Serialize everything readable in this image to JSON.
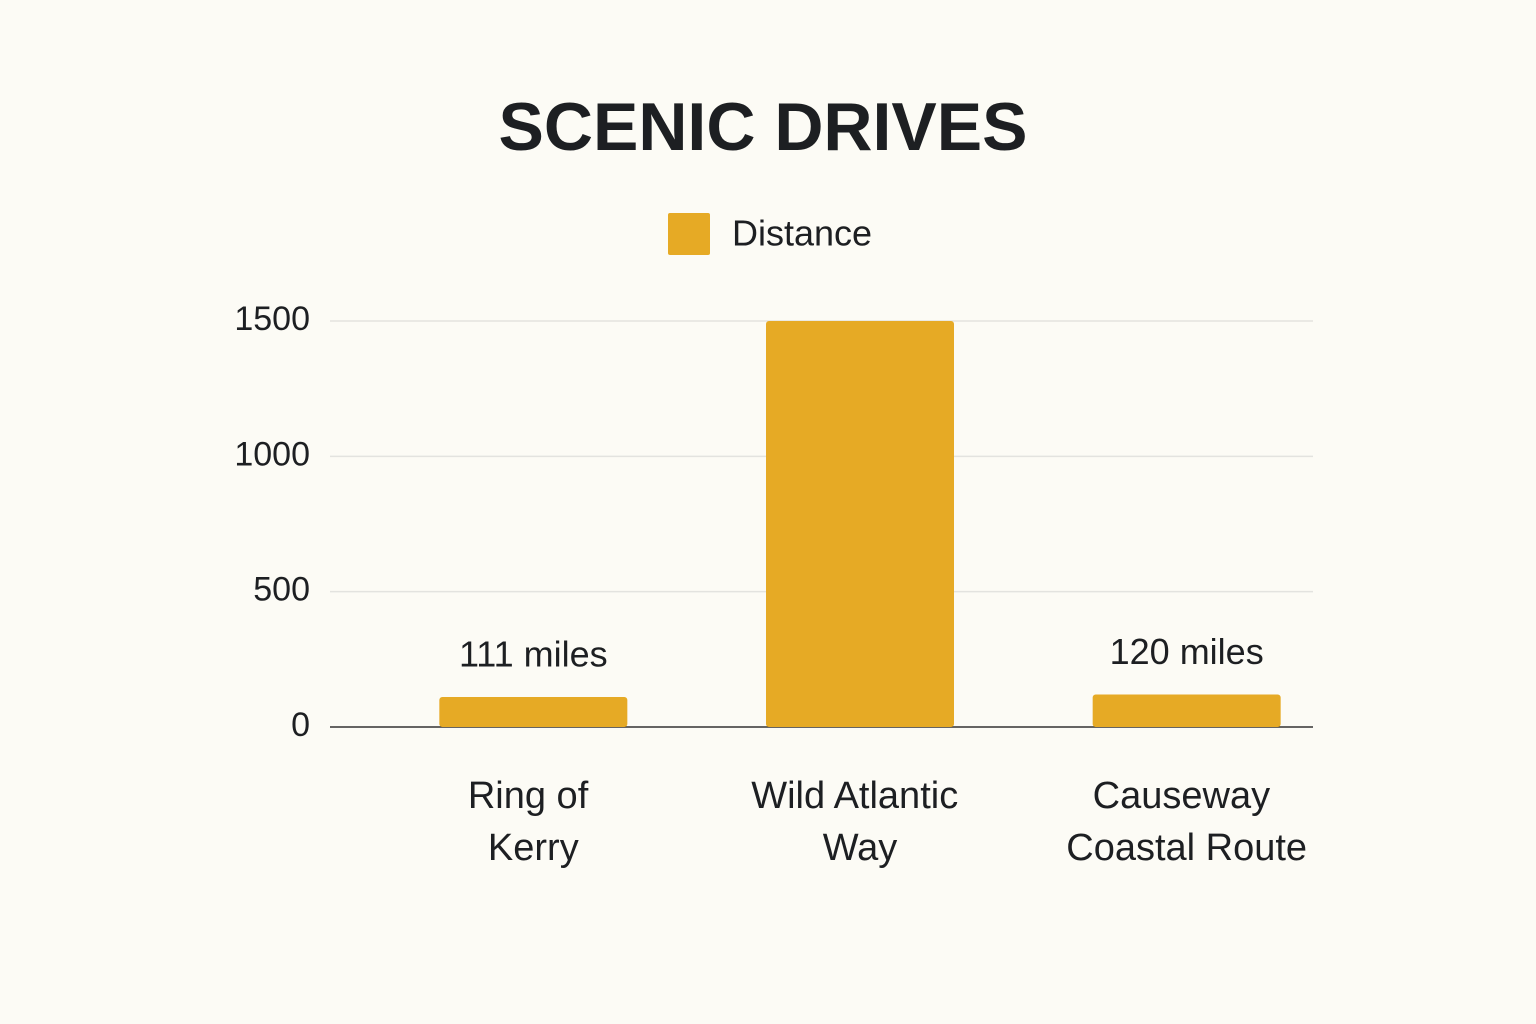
{
  "chart_data": {
    "type": "bar",
    "title": "SCENIC DRIVES",
    "categories": [
      "Ring of\nKerry",
      "Wild Atlantic\nWay",
      "Causeway\nCoastal Route"
    ],
    "series": [
      {
        "name": "Distance",
        "color": "#e6aa25",
        "values": [
          111,
          1500,
          120
        ],
        "value_labels": [
          "111 miles",
          null,
          "120 miles"
        ]
      }
    ],
    "ylim": [
      0,
      1500
    ],
    "yticks": [
      0,
      500,
      1000,
      1500
    ],
    "grid": true
  }
}
